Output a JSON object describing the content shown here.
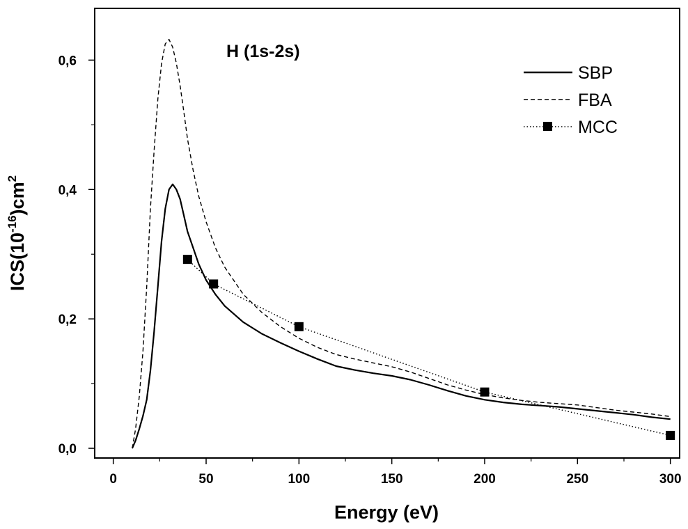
{
  "chart_data": {
    "type": "line",
    "title": "",
    "annotation": "H (1s-2s)",
    "xlabel": "Energy (eV)",
    "ylabel_parts": {
      "prefix": "ICS(10",
      "exp": "-16",
      "mid": ")cm",
      "sup2": "2"
    },
    "xlim": [
      -10,
      305
    ],
    "ylim": [
      -0.015,
      0.68
    ],
    "xticks": [
      {
        "v": 0,
        "label": "0"
      },
      {
        "v": 50,
        "label": "50"
      },
      {
        "v": 100,
        "label": "100"
      },
      {
        "v": 150,
        "label": "150"
      },
      {
        "v": 200,
        "label": "200"
      },
      {
        "v": 250,
        "label": "250"
      },
      {
        "v": 300,
        "label": "300"
      }
    ],
    "yticks": [
      {
        "v": 0.0,
        "label": "0,0"
      },
      {
        "v": 0.2,
        "label": "0,2"
      },
      {
        "v": 0.4,
        "label": "0,4"
      },
      {
        "v": 0.6,
        "label": "0,6"
      }
    ],
    "legend_position": "top-right",
    "series": [
      {
        "name": "SBP",
        "style": "solid",
        "color": "#000000",
        "x": [
          10.2,
          12,
          14,
          16,
          18,
          20,
          22,
          24,
          26,
          28,
          30,
          32,
          34,
          36,
          38,
          40,
          43,
          46,
          50,
          55,
          60,
          70,
          80,
          90,
          100,
          110,
          120,
          130,
          140,
          150,
          160,
          170,
          180,
          190,
          200,
          210,
          220,
          230,
          240,
          250,
          260,
          270,
          280,
          290,
          300
        ],
        "y": [
          0.0,
          0.012,
          0.03,
          0.05,
          0.075,
          0.12,
          0.18,
          0.25,
          0.32,
          0.37,
          0.4,
          0.408,
          0.4,
          0.385,
          0.36,
          0.335,
          0.31,
          0.285,
          0.26,
          0.238,
          0.22,
          0.195,
          0.177,
          0.163,
          0.15,
          0.138,
          0.127,
          0.121,
          0.116,
          0.112,
          0.106,
          0.098,
          0.089,
          0.081,
          0.075,
          0.071,
          0.068,
          0.066,
          0.064,
          0.061,
          0.058,
          0.055,
          0.052,
          0.048,
          0.045
        ]
      },
      {
        "name": "FBA",
        "style": "dashed",
        "color": "#000000",
        "x": [
          10.2,
          12,
          14,
          16,
          18,
          20,
          22,
          24,
          26,
          28,
          30,
          32,
          34,
          36,
          38,
          40,
          43,
          46,
          50,
          55,
          60,
          70,
          80,
          90,
          100,
          110,
          120,
          130,
          140,
          150,
          160,
          170,
          180,
          190,
          200,
          210,
          220,
          230,
          240,
          250,
          260,
          270,
          280,
          290,
          300
        ],
        "y": [
          0.0,
          0.03,
          0.08,
          0.15,
          0.25,
          0.37,
          0.46,
          0.54,
          0.595,
          0.625,
          0.632,
          0.62,
          0.595,
          0.56,
          0.52,
          0.478,
          0.43,
          0.39,
          0.35,
          0.31,
          0.28,
          0.238,
          0.21,
          0.188,
          0.17,
          0.156,
          0.145,
          0.138,
          0.132,
          0.126,
          0.118,
          0.108,
          0.098,
          0.09,
          0.083,
          0.078,
          0.074,
          0.071,
          0.069,
          0.067,
          0.063,
          0.059,
          0.056,
          0.053,
          0.049
        ]
      },
      {
        "name": "MCC",
        "style": "dotted-markers",
        "color": "#000000",
        "x": [
          40,
          54,
          100,
          200,
          300
        ],
        "y": [
          0.292,
          0.254,
          0.188,
          0.087,
          0.02
        ]
      }
    ]
  }
}
